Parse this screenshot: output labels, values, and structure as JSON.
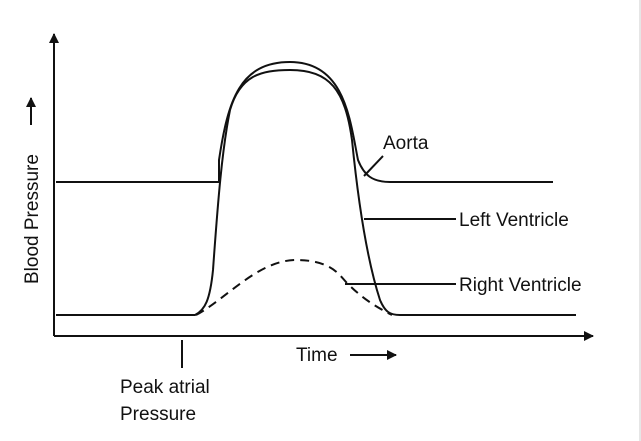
{
  "diagram": {
    "y_axis_label": "Blood Pressure",
    "x_axis_label": "Time",
    "curves": {
      "aorta": "Aorta",
      "left_ventricle": "Left Ventricle",
      "right_ventricle": "Right Ventricle"
    },
    "marker": {
      "line1": "Peak atrial",
      "line2": "Pressure"
    }
  },
  "colors": {
    "ink": "#111111",
    "background": "#ffffff"
  }
}
